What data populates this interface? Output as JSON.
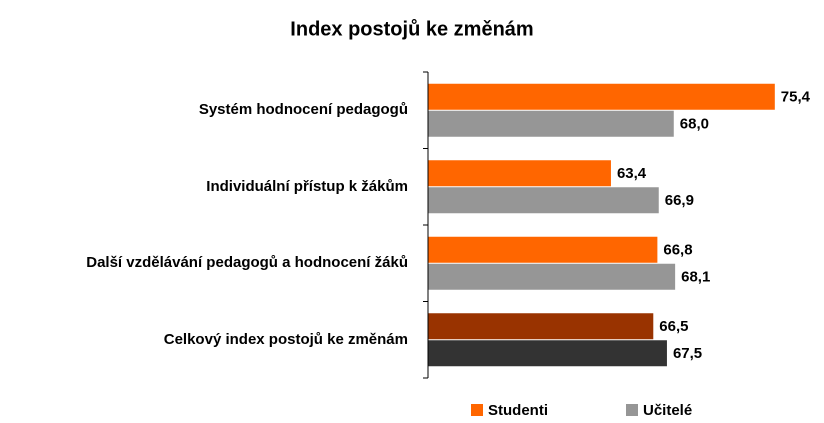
{
  "chart_data": {
    "type": "hbar",
    "title": "Index postojů ke změnám",
    "categories": [
      "Systém hodnocení pedagogů",
      "Individuální přístup k žákům",
      "Další vzdělávání pedagogů a hodnocení žáků",
      "Celkový index postojů ke změnám"
    ],
    "series": [
      {
        "name": "Studenti",
        "color": "#ff6600",
        "colors": [
          "#ff6600",
          "#ff6600",
          "#ff6600",
          "#993300"
        ],
        "values": [
          75.4,
          63.4,
          66.8,
          66.5
        ],
        "value_labels": [
          "75,4",
          "63,4",
          "66,8",
          "66,5"
        ]
      },
      {
        "name": "Učitelé",
        "color": "#969696",
        "colors": [
          "#969696",
          "#969696",
          "#969696",
          "#333333"
        ],
        "values": [
          68.0,
          66.9,
          68.1,
          67.5
        ],
        "value_labels": [
          "68,0",
          "66,9",
          "68,1",
          "67,5"
        ]
      }
    ],
    "xlim": [
      50,
      76
    ],
    "legend": "bottom"
  }
}
